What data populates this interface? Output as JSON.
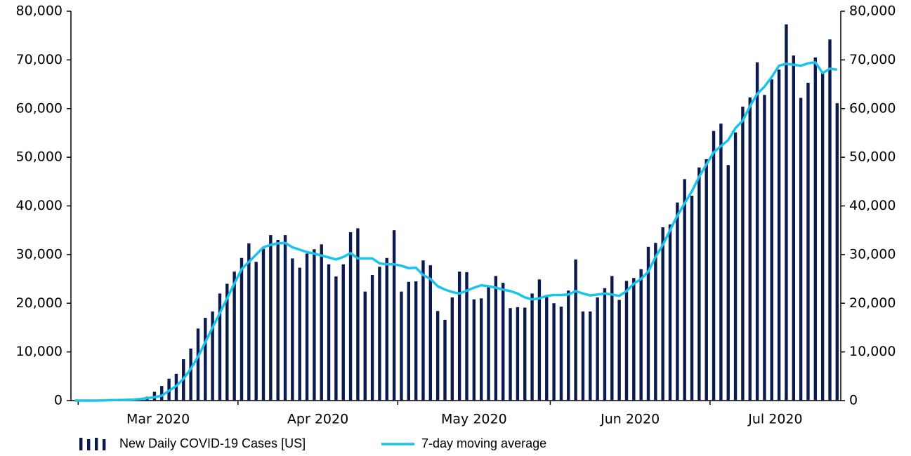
{
  "chart_data": {
    "type": "bar",
    "categories": [
      null,
      null,
      null,
      null,
      null,
      null,
      null,
      null,
      null,
      null,
      null,
      null,
      null,
      null,
      null,
      null,
      null,
      null,
      null,
      null,
      null,
      null,
      null,
      null,
      null,
      null,
      null,
      null,
      null,
      null,
      null,
      null,
      null,
      null,
      null,
      null,
      null,
      null,
      null,
      null,
      null,
      null,
      null,
      null,
      null,
      null,
      null,
      null,
      null,
      null,
      null,
      null,
      null,
      null,
      null,
      null,
      null,
      null,
      null,
      null,
      null,
      null,
      null,
      null,
      null,
      null,
      null,
      null,
      null,
      null,
      null,
      null,
      null,
      null,
      null,
      null,
      null,
      null,
      null,
      null,
      null,
      null,
      null,
      null,
      null,
      null,
      null,
      null,
      null,
      null,
      null,
      null,
      null,
      null,
      null,
      null,
      null,
      null,
      null,
      null,
      null,
      null,
      null,
      null,
      null,
      null
    ],
    "xticks": [
      {
        "value": 1,
        "label": "Mar 2020"
      },
      {
        "value": 23,
        "label": "Apr 2020"
      },
      {
        "value": 45,
        "label": "May 2020"
      },
      {
        "value": 66,
        "label": "Jun 2020"
      },
      {
        "value": 88,
        "label": "Jul 2020"
      }
    ],
    "series": [
      {
        "name": "New Daily COVID-19 Cases [US]",
        "type": "bar",
        "color": "#0b1a4d",
        "values": [
          10,
          20,
          20,
          40,
          60,
          80,
          100,
          200,
          300,
          500,
          800,
          1800,
          3000,
          4500,
          5500,
          8500,
          10700,
          14800,
          17000,
          18300,
          22000,
          24000,
          26500,
          29300,
          32300,
          28500,
          31200,
          34000,
          33000,
          34000,
          29200,
          27300,
          30200,
          31100,
          32100,
          28000,
          25500,
          28000,
          34600,
          35400,
          22400,
          25800,
          27500,
          29300,
          35000,
          22400,
          24400,
          24500,
          28800,
          27800,
          18400,
          16600,
          21200,
          26500,
          26400,
          20800,
          21000,
          23700,
          25600,
          24200,
          19000,
          19200,
          19100,
          22000,
          24900,
          21600,
          20000,
          19300,
          22600,
          29000,
          18300,
          18300,
          21200,
          23100,
          25600,
          20700,
          24600,
          25200,
          27000,
          31600,
          32400,
          35600,
          36200,
          40700,
          45500,
          42100,
          47900,
          49600,
          55400,
          56900,
          48400,
          55100,
          60400,
          62300,
          69500,
          62800,
          66000,
          68000,
          77300,
          70900,
          62200,
          65300,
          70500,
          67500,
          74200,
          61100
        ]
      },
      {
        "name": "7-day moving average",
        "type": "line",
        "color": "#19c3f0",
        "values": [
          0,
          0,
          0,
          0,
          50,
          80,
          100,
          150,
          200,
          300,
          500,
          700,
          1000,
          2000,
          3000,
          4500,
          6500,
          9000,
          12000,
          15000,
          18000,
          21000,
          24000,
          27000,
          28500,
          30000,
          31500,
          32000,
          32300,
          32400,
          31500,
          31000,
          30500,
          30200,
          29800,
          29400,
          29000,
          29500,
          30300,
          29200,
          29200,
          29200,
          28200,
          28000,
          28000,
          27700,
          27200,
          27300,
          25800,
          25000,
          23500,
          22800,
          22300,
          22000,
          22600,
          23200,
          23700,
          23500,
          23200,
          22800,
          22500,
          22000,
          21200,
          20800,
          21000,
          21500,
          21700,
          21700,
          21800,
          22500,
          22000,
          21600,
          21800,
          22000,
          21800,
          21500,
          22500,
          24000,
          25000,
          26500,
          29500,
          32000,
          35000,
          38000,
          40500,
          43000,
          46000,
          48500,
          51000,
          52300,
          53500,
          56000,
          57500,
          60500,
          63000,
          64500,
          66500,
          68800,
          69200,
          69000,
          68800,
          69300,
          69500,
          67300,
          68200,
          68000
        ]
      }
    ],
    "ylim": [
      0,
      80000
    ],
    "yticks": [
      0,
      {
        "value": 10000,
        "label": "10,000"
      },
      {
        "value": 20000,
        "label": "20,000"
      },
      {
        "value": 30000,
        "label": "30,000"
      },
      {
        "value": 40000,
        "label": "40,000"
      },
      {
        "value": 50000,
        "label": "50,000"
      },
      {
        "value": 60000,
        "label": "60,000"
      },
      {
        "value": 70000,
        "label": "70,000"
      },
      {
        "value": 80000,
        "label": "80,000"
      }
    ],
    "legend": "bottom"
  }
}
